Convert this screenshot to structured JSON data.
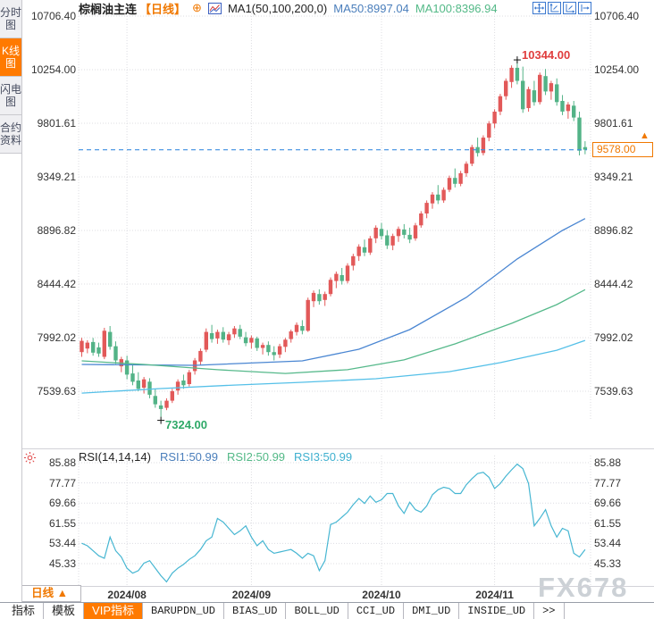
{
  "window": {
    "watermark": "FX678"
  },
  "sidebar": {
    "items": [
      {
        "label": "分时图",
        "active": false
      },
      {
        "label": "K线图",
        "active": true
      },
      {
        "label": "闪电图",
        "active": false
      },
      {
        "label": "合约资料",
        "active": false
      }
    ]
  },
  "header": {
    "title": "棕榈油主连",
    "period": "【日线】",
    "add_icon": "⊕",
    "ma_settings": "MA1(50,100,200,0)",
    "ma50": "MA50:8997.04",
    "ma100": "MA100:8396.94",
    "tool_icons": [
      "move-chart",
      "y-axis-scale",
      "x-axis-scale",
      "jump-to-latest"
    ]
  },
  "colors": {
    "up": "#e25959",
    "down": "#53b387",
    "ma50": "#4a86d2",
    "ma100": "#56b98b",
    "ma200": "#55c0e8",
    "rsi": "#46b6d2",
    "grid": "#dcdce2",
    "last_price_line": "#3d8ee0",
    "accent_orange": "#f07800",
    "annotation_high": "#e03e3e",
    "annotation_low": "#2fa968",
    "axis_text": "#333333"
  },
  "chart_data": [
    {
      "type": "candlestick",
      "title": "棕榈油主连 日线",
      "y_ticks": [
        10706.4,
        10254.0,
        9801.61,
        9349.21,
        8896.82,
        8444.42,
        7992.02,
        7539.63
      ],
      "x_tick_labels": [
        "2024/08",
        "2024/09",
        "2024/10",
        "2024/11"
      ],
      "x_tick_indices": [
        8,
        30,
        53,
        73
      ],
      "annotations": {
        "high": {
          "index": 77,
          "value": 10344.0,
          "label": "10344.00"
        },
        "low": {
          "index": 14,
          "value": 7324.0,
          "label": "7324.00"
        },
        "last_price": 9578.0,
        "last_price_label": "9578.00",
        "last_price_marker": "▲"
      },
      "candles_ohlc": [
        [
          7870,
          7990,
          7830,
          7965
        ],
        [
          7900,
          7970,
          7860,
          7950
        ],
        [
          7955,
          7990,
          7840,
          7865
        ],
        [
          7910,
          7950,
          7830,
          7858
        ],
        [
          7830,
          8075,
          7810,
          8050
        ],
        [
          8040,
          8090,
          7890,
          7915
        ],
        [
          7920,
          7960,
          7770,
          7800
        ],
        [
          7750,
          7830,
          7700,
          7810
        ],
        [
          7800,
          7840,
          7640,
          7680
        ],
        [
          7690,
          7760,
          7590,
          7620
        ],
        [
          7630,
          7700,
          7540,
          7560
        ],
        [
          7570,
          7660,
          7520,
          7640
        ],
        [
          7620,
          7650,
          7480,
          7510
        ],
        [
          7500,
          7560,
          7400,
          7430
        ],
        [
          7420,
          7460,
          7324,
          7390
        ],
        [
          7400,
          7480,
          7380,
          7460
        ],
        [
          7460,
          7560,
          7440,
          7540
        ],
        [
          7545,
          7640,
          7510,
          7620
        ],
        [
          7630,
          7680,
          7560,
          7590
        ],
        [
          7600,
          7720,
          7580,
          7700
        ],
        [
          7710,
          7820,
          7680,
          7800
        ],
        [
          7790,
          7900,
          7760,
          7880
        ],
        [
          7890,
          8070,
          7870,
          8040
        ],
        [
          8030,
          8100,
          7950,
          7980
        ],
        [
          7985,
          8060,
          7940,
          8040
        ],
        [
          8040,
          8080,
          7950,
          7975
        ],
        [
          7970,
          8040,
          7930,
          8020
        ],
        [
          8020,
          8090,
          7990,
          8070
        ],
        [
          8065,
          8100,
          7980,
          8000
        ],
        [
          7995,
          8040,
          7920,
          7945
        ],
        [
          7950,
          8010,
          7900,
          7990
        ],
        [
          7985,
          8000,
          7880,
          7905
        ],
        [
          7905,
          7950,
          7850,
          7930
        ],
        [
          7930,
          7960,
          7840,
          7870
        ],
        [
          7870,
          7920,
          7800,
          7845
        ],
        [
          7850,
          7940,
          7820,
          7920
        ],
        [
          7915,
          7990,
          7870,
          7975
        ],
        [
          7980,
          8060,
          7950,
          8045
        ],
        [
          8040,
          8120,
          8010,
          8100
        ],
        [
          8090,
          8140,
          8020,
          8050
        ],
        [
          8050,
          8330,
          8040,
          8310
        ],
        [
          8300,
          8390,
          8250,
          8370
        ],
        [
          8360,
          8400,
          8270,
          8300
        ],
        [
          8310,
          8380,
          8260,
          8360
        ],
        [
          8360,
          8500,
          8340,
          8480
        ],
        [
          8470,
          8550,
          8410,
          8530
        ],
        [
          8520,
          8580,
          8440,
          8470
        ],
        [
          8470,
          8620,
          8450,
          8600
        ],
        [
          8600,
          8700,
          8560,
          8680
        ],
        [
          8680,
          8780,
          8640,
          8760
        ],
        [
          8755,
          8820,
          8680,
          8710
        ],
        [
          8710,
          8850,
          8690,
          8830
        ],
        [
          8830,
          8940,
          8790,
          8920
        ],
        [
          8910,
          8960,
          8820,
          8850
        ],
        [
          8855,
          8900,
          8740,
          8770
        ],
        [
          8770,
          8870,
          8730,
          8850
        ],
        [
          8850,
          8930,
          8800,
          8910
        ],
        [
          8905,
          8950,
          8830,
          8860
        ],
        [
          8860,
          8920,
          8790,
          8820
        ],
        [
          8830,
          8960,
          8810,
          8940
        ],
        [
          8940,
          9060,
          8920,
          9040
        ],
        [
          9040,
          9150,
          9000,
          9130
        ],
        [
          9125,
          9220,
          9080,
          9200
        ],
        [
          9200,
          9280,
          9120,
          9150
        ],
        [
          9150,
          9260,
          9130,
          9240
        ],
        [
          9240,
          9360,
          9220,
          9340
        ],
        [
          9340,
          9420,
          9260,
          9290
        ],
        [
          9290,
          9400,
          9270,
          9380
        ],
        [
          9380,
          9480,
          9350,
          9460
        ],
        [
          9460,
          9620,
          9440,
          9600
        ],
        [
          9600,
          9680,
          9520,
          9550
        ],
        [
          9550,
          9700,
          9530,
          9680
        ],
        [
          9680,
          9820,
          9650,
          9800
        ],
        [
          9800,
          9920,
          9760,
          9900
        ],
        [
          9900,
          10050,
          9870,
          10030
        ],
        [
          10030,
          10180,
          10000,
          10160
        ],
        [
          10150,
          10290,
          10100,
          10270
        ],
        [
          10270,
          10344,
          10130,
          10160
        ],
        [
          10160,
          10280,
          9890,
          9920
        ],
        [
          9930,
          10110,
          9900,
          10090
        ],
        [
          10080,
          10160,
          9950,
          9980
        ],
        [
          9980,
          10230,
          9960,
          10210
        ],
        [
          10200,
          10260,
          10040,
          10070
        ],
        [
          10070,
          10160,
          10000,
          10140
        ],
        [
          10130,
          10180,
          9950,
          9980
        ],
        [
          9990,
          10040,
          9870,
          9900
        ],
        [
          9905,
          9980,
          9840,
          9960
        ],
        [
          9950,
          9990,
          9820,
          9850
        ],
        [
          9850,
          9900,
          9530,
          9570
        ],
        [
          9600,
          9650,
          9540,
          9578
        ]
      ],
      "overlays": [
        {
          "name": "MA50",
          "color_key": "ma50",
          "points": [
            [
              0,
              7766
            ],
            [
              20,
              7758
            ],
            [
              39,
              7796
            ],
            [
              49,
              7894
            ],
            [
              58,
              8060
            ],
            [
              68,
              8331
            ],
            [
              77,
              8656
            ],
            [
              85,
              8897
            ],
            [
              89,
              8997
            ]
          ]
        },
        {
          "name": "MA100",
          "color_key": "ma100",
          "points": [
            [
              0,
              7796
            ],
            [
              11,
              7766
            ],
            [
              24,
              7721
            ],
            [
              36,
              7690
            ],
            [
              47,
              7721
            ],
            [
              57,
              7804
            ],
            [
              66,
              7939
            ],
            [
              76,
              8113
            ],
            [
              84,
              8271
            ],
            [
              89,
              8397
            ]
          ]
        },
        {
          "name": "MA200",
          "color_key": "ma200",
          "points": [
            [
              0,
              7524
            ],
            [
              14,
              7562
            ],
            [
              27,
              7592
            ],
            [
              39,
              7615
            ],
            [
              52,
              7645
            ],
            [
              65,
              7705
            ],
            [
              74,
              7781
            ],
            [
              84,
              7886
            ],
            [
              89,
              7969
            ]
          ]
        }
      ]
    },
    {
      "type": "line",
      "name": "RSI",
      "header": {
        "label": "RSI(14,14,14)",
        "rsi1": "RSI1:50.99",
        "rsi2": "RSI2:50.99",
        "rsi3": "RSI3:50.99"
      },
      "y_ticks": [
        85.88,
        77.77,
        69.66,
        61.55,
        53.44,
        45.33
      ],
      "values": [
        53.5,
        52.5,
        50.5,
        48.5,
        47.5,
        56,
        50.5,
        48,
        43.5,
        41.5,
        42.5,
        45.5,
        46.5,
        43.5,
        40.5,
        38,
        41.5,
        43.5,
        45,
        47,
        48.5,
        51,
        54.5,
        56,
        63.5,
        62,
        59.5,
        57,
        58.5,
        60.5,
        56,
        52.5,
        54.5,
        51,
        49.5,
        50,
        50.5,
        51,
        49.5,
        47.5,
        49.5,
        48.5,
        42.5,
        46.5,
        61,
        62,
        64,
        66,
        69,
        71.5,
        69.5,
        72.5,
        70,
        71,
        73.5,
        73.5,
        68.5,
        65.5,
        70,
        67,
        66,
        68.5,
        73,
        75,
        76,
        75.5,
        73.5,
        73.5,
        77,
        79.5,
        81.5,
        82,
        80,
        75.5,
        77.5,
        80.5,
        83,
        85.3,
        83.5,
        77.5,
        60.5,
        63.5,
        67,
        60.5,
        56,
        59.5,
        58.5,
        49.5,
        48,
        51
      ]
    }
  ],
  "xaxis": {
    "period_button": {
      "label": "日线",
      "arrow": "▲"
    },
    "dates": [
      "2024/08",
      "2024/09",
      "2024/10",
      "2024/11"
    ]
  },
  "bottom_toolbar": {
    "items": [
      {
        "label": "指标",
        "active": false,
        "mono": false
      },
      {
        "label": "模板",
        "active": false,
        "mono": false
      },
      {
        "label": "VIP指标",
        "active": true,
        "mono": false
      },
      {
        "label": "BARUPDN_UD",
        "active": false,
        "mono": true
      },
      {
        "label": "BIAS_UD",
        "active": false,
        "mono": true
      },
      {
        "label": "BOLL_UD",
        "active": false,
        "mono": true
      },
      {
        "label": "CCI_UD",
        "active": false,
        "mono": true
      },
      {
        "label": "DMI_UD",
        "active": false,
        "mono": true
      },
      {
        "label": "INSIDE_UD",
        "active": false,
        "mono": true
      },
      {
        "label": ">>",
        "active": false,
        "mono": true
      }
    ]
  }
}
